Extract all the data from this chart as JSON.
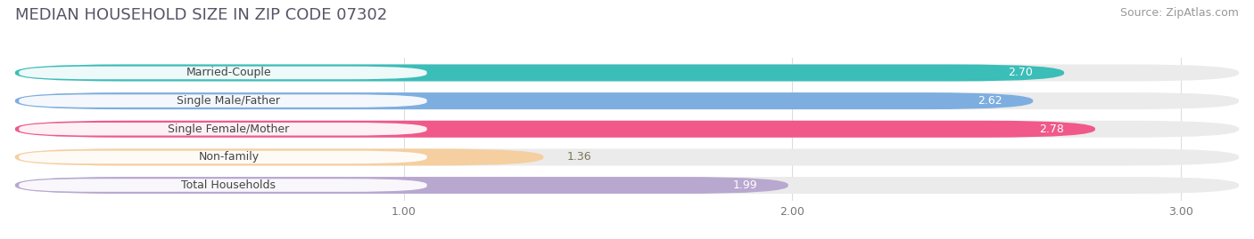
{
  "title": "MEDIAN HOUSEHOLD SIZE IN ZIP CODE 07302",
  "source": "Source: ZipAtlas.com",
  "categories": [
    "Married-Couple",
    "Single Male/Father",
    "Single Female/Mother",
    "Non-family",
    "Total Households"
  ],
  "values": [
    2.7,
    2.62,
    2.78,
    1.36,
    1.99
  ],
  "bar_colors": [
    "#3bbdb8",
    "#7eaee0",
    "#f0598a",
    "#f5cfa0",
    "#b8a8d0"
  ],
  "value_label_colors": [
    "white",
    "white",
    "white",
    "#888855",
    "#888855"
  ],
  "xlim_left": 0.0,
  "xlim_right": 3.15,
  "xticks": [
    1.0,
    2.0,
    3.0
  ],
  "background_color": "#ffffff",
  "bar_bg_color": "#ebebeb",
  "title_fontsize": 13,
  "source_fontsize": 9,
  "bar_height": 0.6,
  "title_color": "#555566",
  "source_color": "#999999",
  "label_box_color": "#ffffff",
  "label_text_color": "#444444",
  "grid_color": "#dddddd"
}
